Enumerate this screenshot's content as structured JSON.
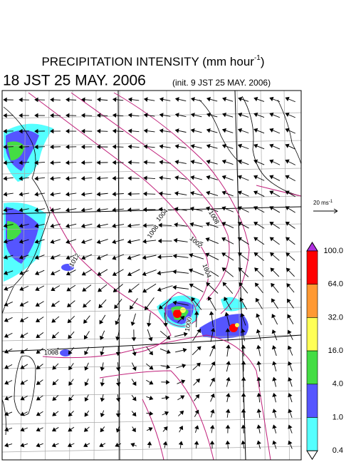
{
  "header": {
    "title": {
      "main": "PRECIPITATION INTENSITY (mm hour",
      "exponent": "-1",
      "close": ")"
    },
    "valid_time": "18 JST 25 MAY. 2006",
    "init_time": "(init. 9 JST 25 MAY. 2006)"
  },
  "reference_vector": {
    "label": "20 ms",
    "exponent": "-1"
  },
  "contour_labels": [
    "1012",
    "1008",
    "1004",
    "1008",
    "1002",
    "1004",
    "1000",
    "1008"
  ],
  "colorbar": {
    "labels": [
      "100.0",
      "64.0",
      "32.0",
      "16.0",
      "4.0",
      "1.0",
      "0.4"
    ],
    "colors": [
      "#ff0000",
      "#ff9933",
      "#ffff55",
      "#44dd44",
      "#5555ff",
      "#55ffff"
    ],
    "over_color": "#b030e0",
    "under_color": "#ffffff"
  }
}
